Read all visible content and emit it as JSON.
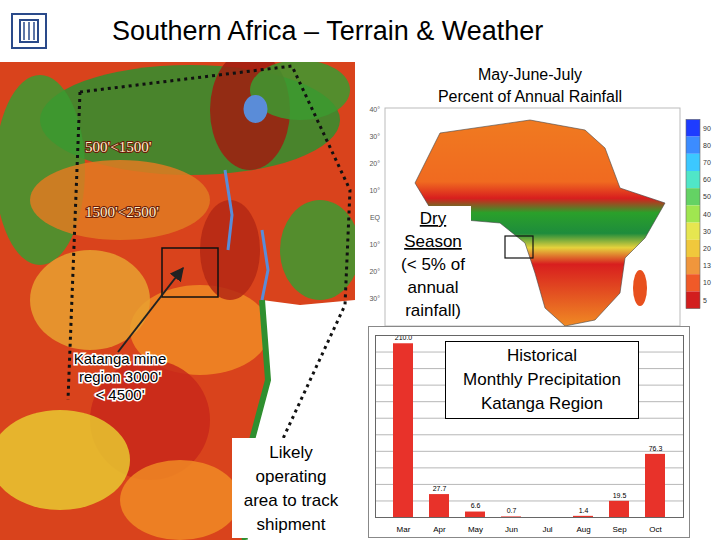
{
  "slide": {
    "title": "Southern Africa – Terrain & Weather",
    "terrain_map": {
      "elevation_labels": [
        "500'<1500'",
        "1500'<2500'"
      ],
      "mine_label": [
        "Katanga mine",
        "region 3000'",
        "< 4500'"
      ],
      "area_label": [
        "Likely",
        "operating",
        "area to track",
        "shipment"
      ]
    },
    "rainfall_map": {
      "title": [
        "May-June-July",
        "Percent of Annual Rainfall"
      ],
      "note": [
        "Dry",
        "Season",
        "(< 5% of",
        "annual",
        "rainfall)"
      ],
      "lat_labels": [
        "40°",
        "30°",
        "20°",
        "10°",
        "EQ",
        "10°",
        "20°",
        "30°"
      ],
      "colorbar_ticks": [
        90,
        80,
        70,
        60,
        50,
        40,
        30,
        20,
        13,
        10,
        5
      ]
    }
  },
  "chart_data": {
    "type": "bar",
    "title": [
      "Historical",
      "Monthly Precipitation",
      "Katanga Region"
    ],
    "categories": [
      "Mar",
      "Apr",
      "May",
      "Jun",
      "Jul",
      "Aug",
      "Sep",
      "Oct"
    ],
    "values": [
      210,
      27.7,
      6.6,
      0.7,
      null,
      1.4,
      19.5,
      76.3
    ],
    "value_labels": [
      "210.0",
      "27.7",
      "6.6",
      "0.7",
      null,
      "1.4",
      "19.5",
      "76.3"
    ],
    "color": "#e8322a",
    "ylim": [
      0,
      220
    ],
    "yticks": [
      0,
      20,
      40,
      60,
      80,
      100,
      120,
      140,
      160,
      180,
      200,
      220
    ],
    "grid": true,
    "data_labels": true,
    "tick_labels": "x"
  }
}
